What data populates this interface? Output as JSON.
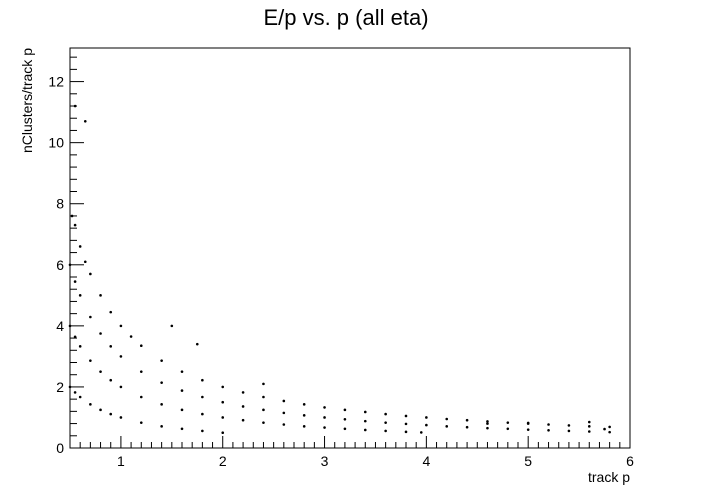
{
  "chart_data": {
    "type": "scatter",
    "title": "E/p vs. p (all eta)",
    "xlabel": "track p",
    "ylabel": "nClusters/track p",
    "xlim": [
      0.5,
      6.0
    ],
    "ylim": [
      0,
      13.1
    ],
    "xticks": [
      1,
      2,
      3,
      4,
      5,
      6
    ],
    "yticks": [
      0,
      2,
      4,
      6,
      8,
      10,
      12
    ],
    "grid": false,
    "legend": "none",
    "marker_color": "#000000",
    "series": [
      {
        "x": [
          0.5,
          0.55,
          0.6,
          0.7,
          0.8,
          0.9,
          1.0,
          1.2,
          1.4,
          1.6,
          1.8,
          2.0
        ],
        "y": [
          2.0,
          1.82,
          1.67,
          1.43,
          1.25,
          1.11,
          1.0,
          0.83,
          0.71,
          0.63,
          0.56,
          0.5
        ]
      },
      {
        "x": [
          0.5,
          0.55,
          0.6,
          0.7,
          0.8,
          0.9,
          1.0,
          1.2,
          1.4,
          1.6,
          1.8,
          2.0,
          2.2,
          2.4,
          2.6,
          2.8,
          3.0,
          3.2,
          3.4,
          3.6,
          3.8,
          3.95
        ],
        "y": [
          4.0,
          3.64,
          3.33,
          2.86,
          2.5,
          2.22,
          2.0,
          1.67,
          1.43,
          1.25,
          1.11,
          1.0,
          0.91,
          0.83,
          0.77,
          0.71,
          0.67,
          0.63,
          0.59,
          0.56,
          0.53,
          0.51
        ]
      },
      {
        "x": [
          0.5,
          0.55,
          0.6,
          0.7,
          0.8,
          0.9,
          1.0,
          1.2,
          1.4,
          1.6,
          1.8,
          2.0,
          2.2,
          2.4,
          2.6,
          2.8,
          3.0,
          3.2,
          3.4,
          3.6,
          3.8,
          4.0,
          4.2,
          4.4,
          4.6,
          4.8,
          5.0,
          5.2,
          5.4,
          5.6,
          5.8
        ],
        "y": [
          6.0,
          5.45,
          5.0,
          4.29,
          3.75,
          3.33,
          3.0,
          2.5,
          2.14,
          1.88,
          1.67,
          1.5,
          1.36,
          1.25,
          1.15,
          1.07,
          1.0,
          0.94,
          0.88,
          0.83,
          0.79,
          0.75,
          0.71,
          0.68,
          0.65,
          0.63,
          0.6,
          0.58,
          0.56,
          0.54,
          0.52
        ]
      },
      {
        "x": [
          0.52,
          0.55,
          0.6,
          0.65,
          0.7,
          0.8,
          0.9,
          1.0,
          1.1,
          1.2,
          1.4,
          1.6,
          1.8,
          2.0,
          2.2,
          2.4,
          2.6,
          2.8,
          3.0,
          3.2,
          3.4,
          3.6,
          3.8,
          4.0,
          4.2,
          4.4,
          4.6,
          4.8,
          5.0,
          5.2,
          5.4,
          5.6,
          5.8
        ],
        "y": [
          7.6,
          7.3,
          6.6,
          6.1,
          5.7,
          5.0,
          4.45,
          4.0,
          3.65,
          3.35,
          2.86,
          2.5,
          2.22,
          2.0,
          1.82,
          1.67,
          1.54,
          1.43,
          1.33,
          1.25,
          1.18,
          1.11,
          1.05,
          1.0,
          0.95,
          0.91,
          0.87,
          0.83,
          0.8,
          0.77,
          0.74,
          0.71,
          0.69
        ]
      },
      {
        "x": [
          0.55,
          0.65,
          1.5,
          1.75,
          2.4,
          4.6,
          5.0,
          5.6,
          5.75
        ],
        "y": [
          11.2,
          10.7,
          4.0,
          3.4,
          2.1,
          0.8,
          0.82,
          0.85,
          0.62
        ]
      }
    ]
  }
}
